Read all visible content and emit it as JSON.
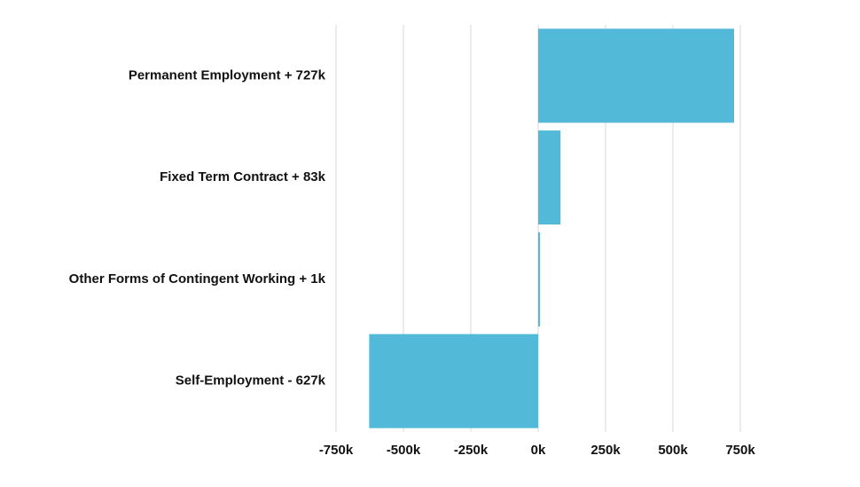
{
  "chart_data": {
    "type": "bar",
    "orientation": "horizontal",
    "title": "",
    "xlabel": "",
    "ylabel": "",
    "categories": [
      "Permanent Employment + 727k",
      "Fixed Term Contract + 83k",
      "Other Forms of Contingent Working + 1k",
      "Self-Employment - 627k"
    ],
    "values": [
      727000,
      83000,
      1000,
      -627000
    ],
    "xlim": [
      -750000,
      750000
    ],
    "xticks": [
      -750000,
      -500000,
      -250000,
      0,
      250000,
      500000,
      750000
    ],
    "xtick_labels": [
      "-750k",
      "-500k",
      "-250k",
      "0k",
      "250k",
      "500k",
      "750k"
    ],
    "grid": "vertical",
    "legend": "none",
    "colors": {
      "bar": "#53b9d8",
      "grid": "#d9d9d9",
      "text": "#111111"
    }
  }
}
